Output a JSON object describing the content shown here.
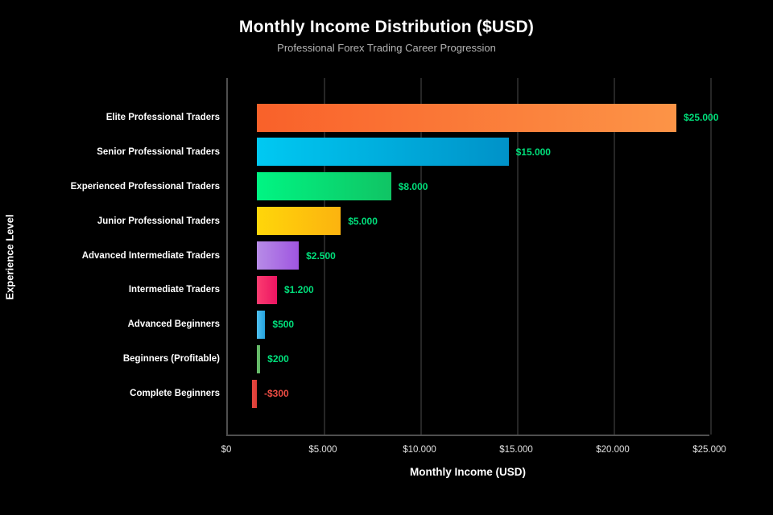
{
  "header": {
    "title": "Monthly Income Distribution ($USD)",
    "subtitle": "Professional Forex Trading Career Progression"
  },
  "chart_data": {
    "type": "bar",
    "orientation": "horizontal",
    "title": "Monthly Income Distribution ($USD)",
    "subtitle": "Professional Forex Trading Career Progression",
    "xlabel": "Monthly Income (USD)",
    "ylabel": "Experience Level",
    "xlim": [
      0,
      25000
    ],
    "grid": "vertical",
    "background_color": "#000000",
    "x_tick_values": [
      0,
      5000,
      10000,
      15000,
      20000,
      25000
    ],
    "x_tick_labels": [
      "$0",
      "$5.000",
      "$10.000",
      "$15.000",
      "$20.000",
      "$25.000"
    ],
    "categories": [
      "Elite Professional Traders",
      "Senior Professional Traders",
      "Experienced Professional Traders",
      "Junior Professional Traders",
      "Advanced Intermediate Traders",
      "Intermediate Traders",
      "Advanced Beginners",
      "Beginners (Profitable)",
      "Complete Beginners"
    ],
    "values": [
      25000,
      15000,
      8000,
      5000,
      2500,
      1200,
      500,
      200,
      -300
    ],
    "value_labels": [
      "$25.000",
      "$15.000",
      "$8.000",
      "$5.000",
      "$2.500",
      "$1.200",
      "$500",
      "$200",
      "-$300"
    ],
    "bar_gradients": [
      [
        "#f9612a",
        "#fc9447"
      ],
      [
        "#00c9f2",
        "#0092c8"
      ],
      [
        "#00f583",
        "#10c464"
      ],
      [
        "#ffd60a",
        "#fcb30f"
      ],
      [
        "#b78ce7",
        "#9f55e0"
      ],
      [
        "#fb3d70",
        "#eb1462"
      ],
      [
        "#4fc0f0",
        "#25a3de"
      ],
      [
        "#6bbf6e",
        "#5fb463"
      ],
      [
        "#e64840",
        "#dd3c36"
      ]
    ],
    "positive_label_color": "#00df7b",
    "negative_label_color": "#ee4d44",
    "axis_line_color": "#4f4f4f",
    "gridline_color": "#262626"
  }
}
